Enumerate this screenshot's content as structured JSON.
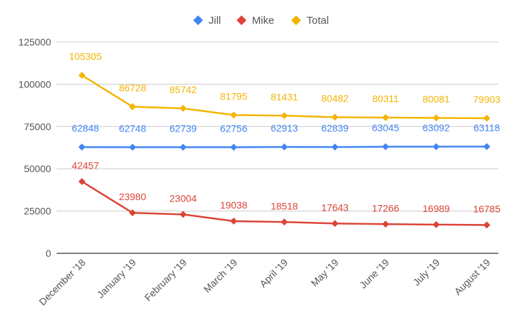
{
  "chart_data": {
    "type": "line",
    "title": "",
    "xlabel": "",
    "ylabel": "",
    "ylim": [
      0,
      125000
    ],
    "yticks": [
      0,
      25000,
      50000,
      75000,
      100000,
      125000
    ],
    "yticklabels": [
      "0",
      "25000",
      "50000",
      "75000",
      "100000",
      "125000"
    ],
    "grid": true,
    "legend_position": "top",
    "categories": [
      "December '18",
      "January '19",
      "February '19",
      "March '19",
      "April '19",
      "May '19",
      "June '19",
      "July '19",
      "August '19"
    ],
    "series": [
      {
        "name": "Jill",
        "color": "#4285f4",
        "marker": "diamond",
        "values": [
          62848,
          62748,
          62739,
          62756,
          62913,
          62839,
          63045,
          63092,
          63118
        ]
      },
      {
        "name": "Mike",
        "color": "#db4437",
        "marker": "diamond",
        "values": [
          42457,
          23980,
          23004,
          19038,
          18518,
          17643,
          17266,
          16989,
          16785
        ]
      },
      {
        "name": "Total",
        "color": "#f4b400",
        "marker": "diamond",
        "values": [
          105305,
          86728,
          85742,
          81795,
          81431,
          80482,
          80311,
          80081,
          79903
        ]
      }
    ]
  }
}
